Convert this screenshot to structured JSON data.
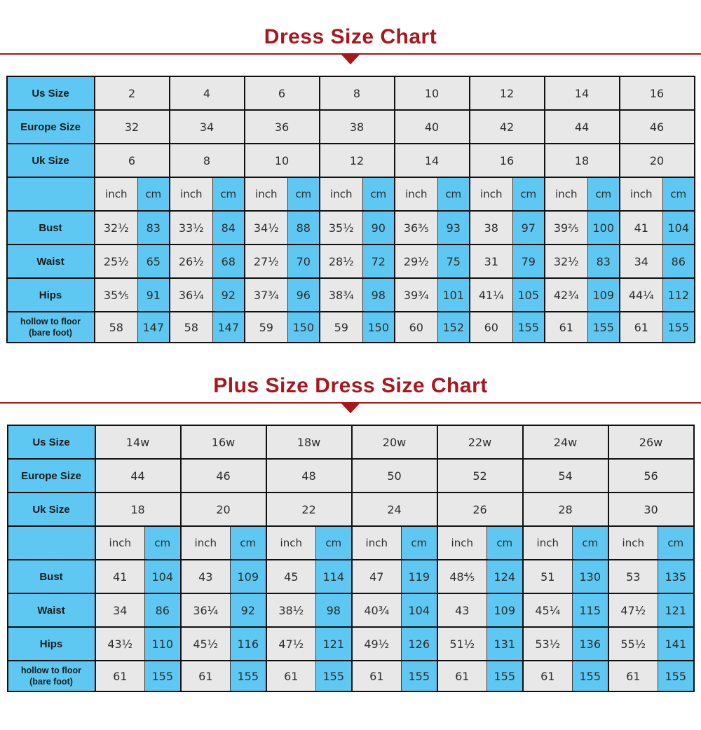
{
  "colors": {
    "accent_red": "#ab151c",
    "cell_blue": "#5ec8f2",
    "cell_gray": "#e8e8e8",
    "border_dark": "#111111"
  },
  "chart_data": [
    {
      "type": "table",
      "title": "Dress Size Chart",
      "unit_inch": "inch",
      "unit_cm": "cm",
      "header_rows": [
        {
          "name": "us-size-row",
          "label": "Us Size",
          "values": [
            "2",
            "4",
            "6",
            "8",
            "10",
            "12",
            "14",
            "16"
          ]
        },
        {
          "name": "europe-size-row",
          "label": "Europe Size",
          "values": [
            "32",
            "34",
            "36",
            "38",
            "40",
            "42",
            "44",
            "46"
          ]
        },
        {
          "name": "uk-size-row",
          "label": "Uk Size",
          "values": [
            "6",
            "8",
            "10",
            "12",
            "14",
            "16",
            "18",
            "20"
          ]
        }
      ],
      "body_rows": [
        {
          "name": "bust-row",
          "label_lines": [
            "Bust"
          ],
          "values": [
            "32½",
            "83",
            "33½",
            "84",
            "34½",
            "88",
            "35½",
            "90",
            "36⅗",
            "93",
            "38",
            "97",
            "39⅖",
            "100",
            "41",
            "104"
          ]
        },
        {
          "name": "waist-row",
          "label_lines": [
            "Waist"
          ],
          "values": [
            "25½",
            "65",
            "26½",
            "68",
            "27½",
            "70",
            "28½",
            "72",
            "29½",
            "75",
            "31",
            "79",
            "32½",
            "83",
            "34",
            "86"
          ]
        },
        {
          "name": "hips-row",
          "label_lines": [
            "Hips"
          ],
          "values": [
            "35⅘",
            "91",
            "36¼",
            "92",
            "37¾",
            "96",
            "38¾",
            "98",
            "39¾",
            "101",
            "41¼",
            "105",
            "42¾",
            "109",
            "44¼",
            "112"
          ]
        },
        {
          "name": "hollow-to-floor-row",
          "label_lines": [
            "hollow to floor",
            "(bare foot)"
          ],
          "values": [
            "58",
            "147",
            "58",
            "147",
            "59",
            "150",
            "59",
            "150",
            "60",
            "152",
            "60",
            "155",
            "61",
            "155",
            "61",
            "155"
          ]
        }
      ]
    },
    {
      "type": "table",
      "title": "Plus Size Dress Size Chart",
      "unit_inch": "inch",
      "unit_cm": "cm",
      "header_rows": [
        {
          "name": "us-size-row",
          "label": "Us Size",
          "values": [
            "14w",
            "16w",
            "18w",
            "20w",
            "22w",
            "24w",
            "26w"
          ]
        },
        {
          "name": "europe-size-row",
          "label": "Europe Size",
          "values": [
            "44",
            "46",
            "48",
            "50",
            "52",
            "54",
            "56"
          ]
        },
        {
          "name": "uk-size-row",
          "label": "Uk Size",
          "values": [
            "18",
            "20",
            "22",
            "24",
            "26",
            "28",
            "30"
          ]
        }
      ],
      "body_rows": [
        {
          "name": "bust-row",
          "label_lines": [
            "Bust"
          ],
          "values": [
            "41",
            "104",
            "43",
            "109",
            "45",
            "114",
            "47",
            "119",
            "48⅘",
            "124",
            "51",
            "130",
            "53",
            "135"
          ]
        },
        {
          "name": "waist-row",
          "label_lines": [
            "Waist"
          ],
          "values": [
            "34",
            "86",
            "36¼",
            "92",
            "38½",
            "98",
            "40¾",
            "104",
            "43",
            "109",
            "45¼",
            "115",
            "47½",
            "121"
          ]
        },
        {
          "name": "hips-row",
          "label_lines": [
            "Hips"
          ],
          "values": [
            "43½",
            "110",
            "45½",
            "116",
            "47½",
            "121",
            "49½",
            "126",
            "51½",
            "131",
            "53½",
            "136",
            "55½",
            "141"
          ]
        },
        {
          "name": "hollow-to-floor-row",
          "label_lines": [
            "hollow to floor",
            "(bare foot)"
          ],
          "values": [
            "61",
            "155",
            "61",
            "155",
            "61",
            "155",
            "61",
            "155",
            "61",
            "155",
            "61",
            "155",
            "61",
            "155"
          ]
        }
      ]
    }
  ]
}
